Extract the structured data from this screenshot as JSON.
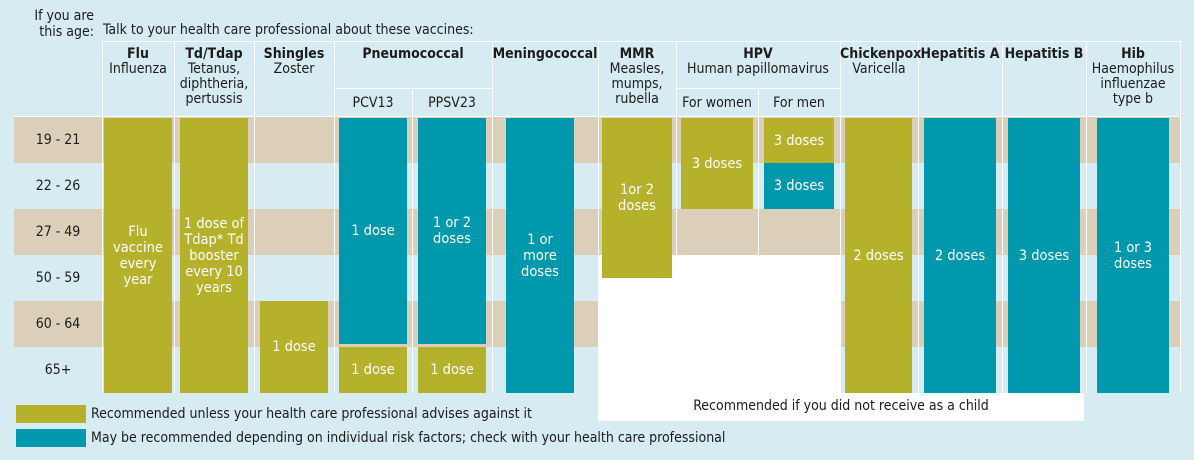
{
  "header": {
    "age_label": "If you are this age:",
    "intro": "Talk to your health care professional about these vaccines:"
  },
  "columns": [
    {
      "id": "flu",
      "title": "Flu",
      "subtitle": "Influenza"
    },
    {
      "id": "tdap",
      "title": "Td/Tdap",
      "subtitle": "Tetanus, diphtheria, pertussis"
    },
    {
      "id": "shingles",
      "title": "Shingles",
      "subtitle": "Zoster"
    },
    {
      "id": "pneumo",
      "title": "Pneumococcal",
      "subtitle": "",
      "sub": [
        "PCV13",
        "PPSV23"
      ]
    },
    {
      "id": "mening",
      "title": "Meningococcal",
      "subtitle": ""
    },
    {
      "id": "mmr",
      "title": "MMR",
      "subtitle": "Measles, mumps, rubella"
    },
    {
      "id": "hpv",
      "title": "HPV",
      "subtitle": "Human papillomavirus",
      "sub": [
        "For women",
        "For men"
      ]
    },
    {
      "id": "chickenpox",
      "title": "Chickenpox",
      "subtitle": "Varicella"
    },
    {
      "id": "hepa",
      "title": "Hepatitis A",
      "subtitle": ""
    },
    {
      "id": "hepb",
      "title": "Hepatitis B",
      "subtitle": ""
    },
    {
      "id": "hib",
      "title": "Hib",
      "subtitle": "Haemophilus influenzae type b"
    }
  ],
  "age_groups": [
    "19 - 21",
    "22 - 26",
    "27 - 49",
    "50 - 59",
    "60 - 64",
    "65+"
  ],
  "bars": {
    "flu": "Flu vaccine every year",
    "tdap": "1 dose of Tdap* Td booster every 10 years",
    "shingles": "1 dose",
    "pcv13_risk": "1 dose",
    "pcv13_65": "1 dose",
    "ppsv23_risk": "1 or 2 doses",
    "ppsv23_65": "1 dose",
    "mening": "1 or more doses",
    "mmr": "1or 2 doses",
    "hpv_women": "3 doses",
    "hpv_men_rec": "3 doses",
    "hpv_men_risk": "3 doses",
    "chickenpox": "2 doses",
    "hepa": "2 doses",
    "hepb": "3 doses",
    "hib": "1 or 3 doses"
  },
  "legend": {
    "recommended": "Recommended unless your health care professional advises against it",
    "risk": "May be recommended depending on individual risk factors; check with your health care professional",
    "not_received": "Recommended if you did not receive as a child"
  },
  "colors": {
    "recommended": "#b5b12a",
    "risk": "#0098ad",
    "band": "#dbcfb9",
    "background": "#d6ebf2"
  }
}
